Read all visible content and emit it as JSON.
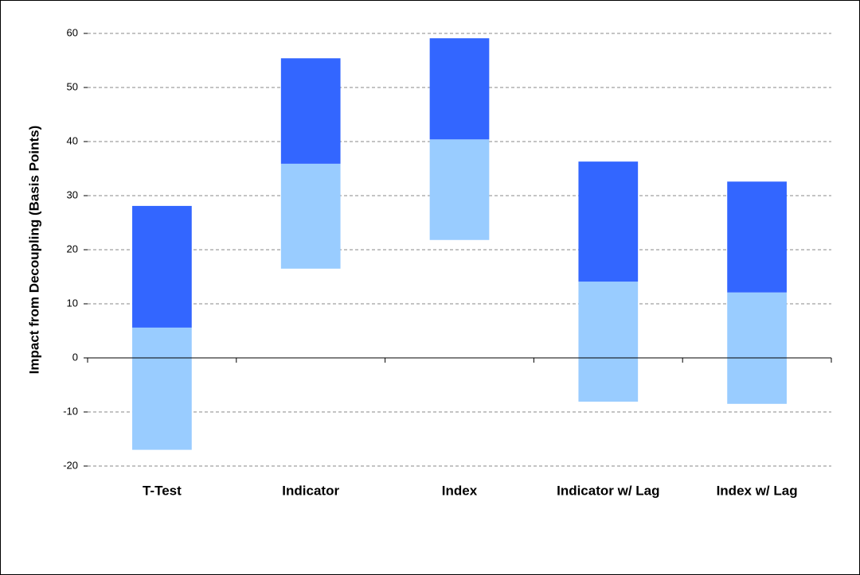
{
  "chart_data": {
    "type": "floating-bar",
    "y_label": "Impact from Decoupling (Basis Points)",
    "categories": [
      "T-Test",
      "Indicator",
      "Index",
      "Indicator w/ Lag",
      "Index w/ Lag"
    ],
    "lower": [
      -17,
      16.5,
      21.8,
      -8.1,
      -8.5
    ],
    "middle": [
      5.6,
      35.9,
      40.4,
      14.1,
      12.1
    ],
    "upper": [
      28.1,
      55.4,
      59.1,
      36.3,
      32.6
    ],
    "colors": [
      "#99ccff",
      "#3366ff"
    ],
    "ylim": [
      -20,
      60
    ],
    "yticks": [
      -20,
      -10,
      0,
      10,
      20,
      30,
      40,
      50,
      60
    ],
    "grid": true
  }
}
